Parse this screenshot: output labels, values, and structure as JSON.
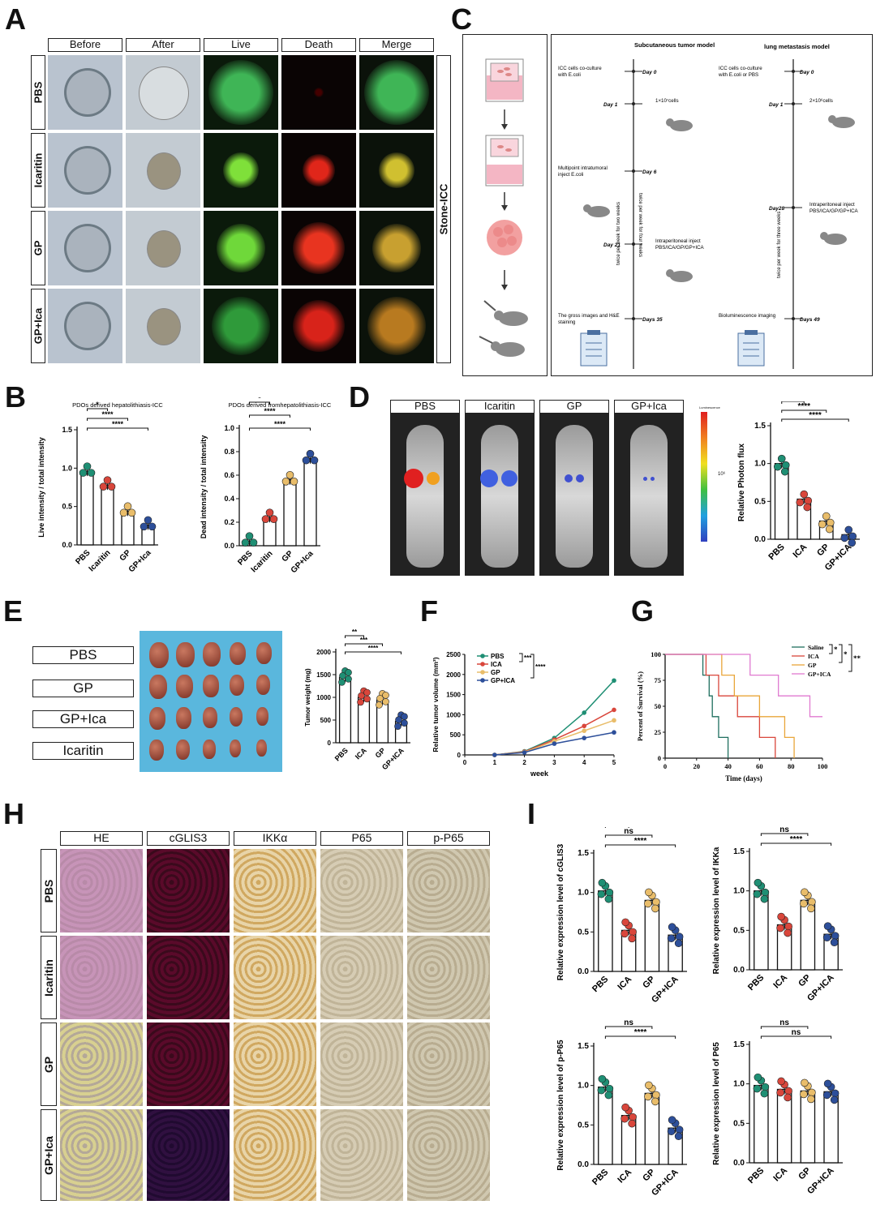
{
  "panel_labels": {
    "A": "A",
    "B": "B",
    "C": "C",
    "D": "D",
    "E": "E",
    "F": "F",
    "G": "G",
    "H": "H",
    "I": "I"
  },
  "panelA": {
    "columns": [
      "Before",
      "After",
      "Live",
      "Death",
      "Merge"
    ],
    "rows": [
      "PBS",
      "Icaritin",
      "GP",
      "GP+Ica"
    ],
    "side_label": "Stone-ICC"
  },
  "panelC": {
    "col1_title": "Subcutaneous tumor model",
    "col2_title": "lung metastasis model",
    "sub_events": [
      {
        "day": "Day 0",
        "text": "ICC cells co-culture with E.coli"
      },
      {
        "day": "Day 1",
        "text": "1×10⁷cells"
      },
      {
        "day": "Day 6",
        "text": "Multipoint intratumoral inject E.coli"
      },
      {
        "day": "Day 21",
        "text": "Intraperitoneal inject PBS/ICA/GP/GP+ICA"
      },
      {
        "day": "Days 35",
        "text": "The gross images and H&E staining"
      }
    ],
    "sub_notes": [
      "twice per week for four weeks",
      "twice per week for two weeks"
    ],
    "lung_events": [
      {
        "day": "Day 0",
        "text": "ICC cells co-culture with E.coli or PBS"
      },
      {
        "day": "Day 1",
        "text": "2×10⁶cells"
      },
      {
        "day": "Day28",
        "text": "Intraperitoneal inject PBS/ICA/GP/GP+ICA"
      },
      {
        "day": "Days 49",
        "text": "Bioluminescence imaging"
      }
    ],
    "lung_notes": [
      "twice per week for three weeks"
    ]
  },
  "panelD": {
    "columns": [
      "PBS",
      "Icaritin",
      "GP",
      "GP+Ica"
    ],
    "scale_title": "Luminescence",
    "scale_mid": "10⁶"
  },
  "panelE": {
    "labels": [
      "PBS",
      "GP",
      "GP+Ica",
      "Icaritin"
    ]
  },
  "panelH": {
    "columns": [
      "HE",
      "cGLIS3",
      "IKKα",
      "P65",
      "p-P65"
    ],
    "rows": [
      "PBS",
      "Icaritin",
      "GP",
      "GP+Ica"
    ]
  },
  "colors": {
    "pbs": "#1f8f74",
    "ica": "#d9463b",
    "gp": "#e9bd6a",
    "gpica": "#2d4f9a"
  },
  "chart_data": [
    {
      "id": "B1",
      "type": "bar",
      "title": "PDOs derived hepatolithiasis-ICC",
      "ylabel": "Live intensity / total intensity",
      "categories": [
        "PBS",
        "Icaritin",
        "GP",
        "GP+Ica"
      ],
      "values": [
        0.96,
        0.78,
        0.44,
        0.26
      ],
      "ylim": [
        0,
        1.5
      ],
      "yticks": [
        "0.0",
        "0.5",
        "1.0",
        "1.5"
      ],
      "sig": [
        "*",
        "****",
        "****"
      ]
    },
    {
      "id": "B2",
      "type": "bar",
      "title": "PDOs derived fromhepatolithiasis-ICC",
      "ylabel": "Dead intensity / total intensity",
      "categories": [
        "PBS",
        "Icaritin",
        "GP",
        "GP+Ica"
      ],
      "values": [
        0.04,
        0.24,
        0.56,
        0.74
      ],
      "ylim": [
        0,
        1.0
      ],
      "yticks": [
        "0.0",
        "0.2",
        "0.4",
        "0.6",
        "0.8",
        "1.0"
      ],
      "sig": [
        "*",
        "****",
        "****"
      ]
    },
    {
      "id": "D",
      "type": "bar",
      "ylabel": "Relative Photon flux",
      "categories": [
        "PBS",
        "ICA",
        "GP",
        "GP+ICA"
      ],
      "values": [
        1.0,
        0.53,
        0.24,
        0.06
      ],
      "ylim": [
        0,
        1.5
      ],
      "yticks": [
        "0.0",
        "0.5",
        "1.0",
        "1.5"
      ],
      "sig": [
        "****",
        "****",
        "****"
      ]
    },
    {
      "id": "E",
      "type": "bar",
      "ylabel": "Tumor weight (mg)",
      "categories": [
        "PBS",
        "ICA",
        "GP",
        "GP+ICA"
      ],
      "values": [
        1440,
        1000,
        940,
        470
      ],
      "ylim": [
        0,
        2000
      ],
      "yticks": [
        "0",
        "500",
        "1000",
        "1500",
        "2000"
      ],
      "sig": [
        "**",
        "***",
        "****"
      ]
    },
    {
      "id": "F",
      "type": "line",
      "xlabel": "week",
      "ylabel": "Relative tumor volume (mm³)",
      "x": [
        0,
        1,
        2,
        3,
        4,
        5
      ],
      "ylim": [
        0,
        2500
      ],
      "yticks": [
        "0",
        "500",
        "1000",
        "1500",
        "2000",
        "2500"
      ],
      "series": [
        {
          "name": "PBS",
          "values": [
            null,
            0,
            90,
            420,
            1050,
            1850
          ]
        },
        {
          "name": "ICA",
          "values": [
            null,
            0,
            80,
            380,
            720,
            1120
          ]
        },
        {
          "name": "GP",
          "values": [
            null,
            0,
            70,
            340,
            600,
            860
          ]
        },
        {
          "name": "GP+ICA",
          "values": [
            null,
            0,
            60,
            280,
            420,
            560
          ]
        }
      ],
      "sig": [
        "***",
        "****"
      ]
    },
    {
      "id": "G",
      "type": "line",
      "xlabel": "Time (days)",
      "ylabel": "Percent of Survival (%)",
      "x_ticks": [
        "0",
        "20",
        "40",
        "60",
        "80",
        "100"
      ],
      "yticks": [
        "0",
        "25",
        "50",
        "75",
        "100"
      ],
      "series": [
        {
          "name": "Saline",
          "steps": [
            [
              0,
              100
            ],
            [
              20,
              100
            ],
            [
              24,
              80
            ],
            [
              28,
              60
            ],
            [
              30,
              40
            ],
            [
              34,
              20
            ],
            [
              40,
              0
            ]
          ]
        },
        {
          "name": "ICA",
          "steps": [
            [
              0,
              100
            ],
            [
              24,
              100
            ],
            [
              26,
              80
            ],
            [
              34,
              60
            ],
            [
              46,
              40
            ],
            [
              60,
              20
            ],
            [
              70,
              0
            ]
          ]
        },
        {
          "name": "GP",
          "steps": [
            [
              0,
              100
            ],
            [
              30,
              100
            ],
            [
              36,
              80
            ],
            [
              44,
              60
            ],
            [
              60,
              40
            ],
            [
              76,
              20
            ],
            [
              82,
              0
            ]
          ]
        },
        {
          "name": "GP+ICA",
          "steps": [
            [
              0,
              100
            ],
            [
              40,
              100
            ],
            [
              54,
              80
            ],
            [
              72,
              60
            ],
            [
              92,
              40
            ],
            [
              100,
              40
            ]
          ]
        }
      ],
      "sig": [
        "*",
        "*",
        "**"
      ]
    },
    {
      "id": "I1",
      "type": "bar",
      "ylabel": "Relative expression level of cGLIS3",
      "categories": [
        "PBS",
        "ICA",
        "GP",
        "GP+ICA"
      ],
      "values": [
        1.02,
        0.52,
        0.9,
        0.46
      ],
      "ylim": [
        0,
        1.5
      ],
      "yticks": [
        "0.0",
        "0.5",
        "1.0",
        "1.5"
      ],
      "sig": [
        "****",
        "ns",
        "****"
      ]
    },
    {
      "id": "I2",
      "type": "bar",
      "ylabel": "Relative expression level of IKKa",
      "categories": [
        "PBS",
        "ICA",
        "GP",
        "GP+ICA"
      ],
      "values": [
        1.0,
        0.57,
        0.88,
        0.45
      ],
      "ylim": [
        0,
        1.5
      ],
      "yticks": [
        "0.0",
        "0.5",
        "1.0",
        "1.5"
      ],
      "sig": [
        "****",
        "ns",
        "****"
      ]
    },
    {
      "id": "I3",
      "type": "bar",
      "ylabel": "Relative expression level of p-P65",
      "categories": [
        "PBS",
        "ICA",
        "GP",
        "GP+ICA"
      ],
      "values": [
        0.98,
        0.62,
        0.9,
        0.46
      ],
      "ylim": [
        0,
        1.5
      ],
      "yticks": [
        "0.0",
        "0.5",
        "1.0",
        "1.5"
      ],
      "sig": [
        "****",
        "ns",
        "****"
      ]
    },
    {
      "id": "I4",
      "type": "bar",
      "ylabel": "Relative expression level of P65",
      "categories": [
        "PBS",
        "ICA",
        "GP",
        "GP+ICA"
      ],
      "values": [
        0.98,
        0.93,
        0.91,
        0.9
      ],
      "ylim": [
        0,
        1.5
      ],
      "yticks": [
        "0.0",
        "0.5",
        "1.0",
        "1.5"
      ],
      "sig": [
        "ns",
        "ns",
        "ns"
      ]
    }
  ]
}
